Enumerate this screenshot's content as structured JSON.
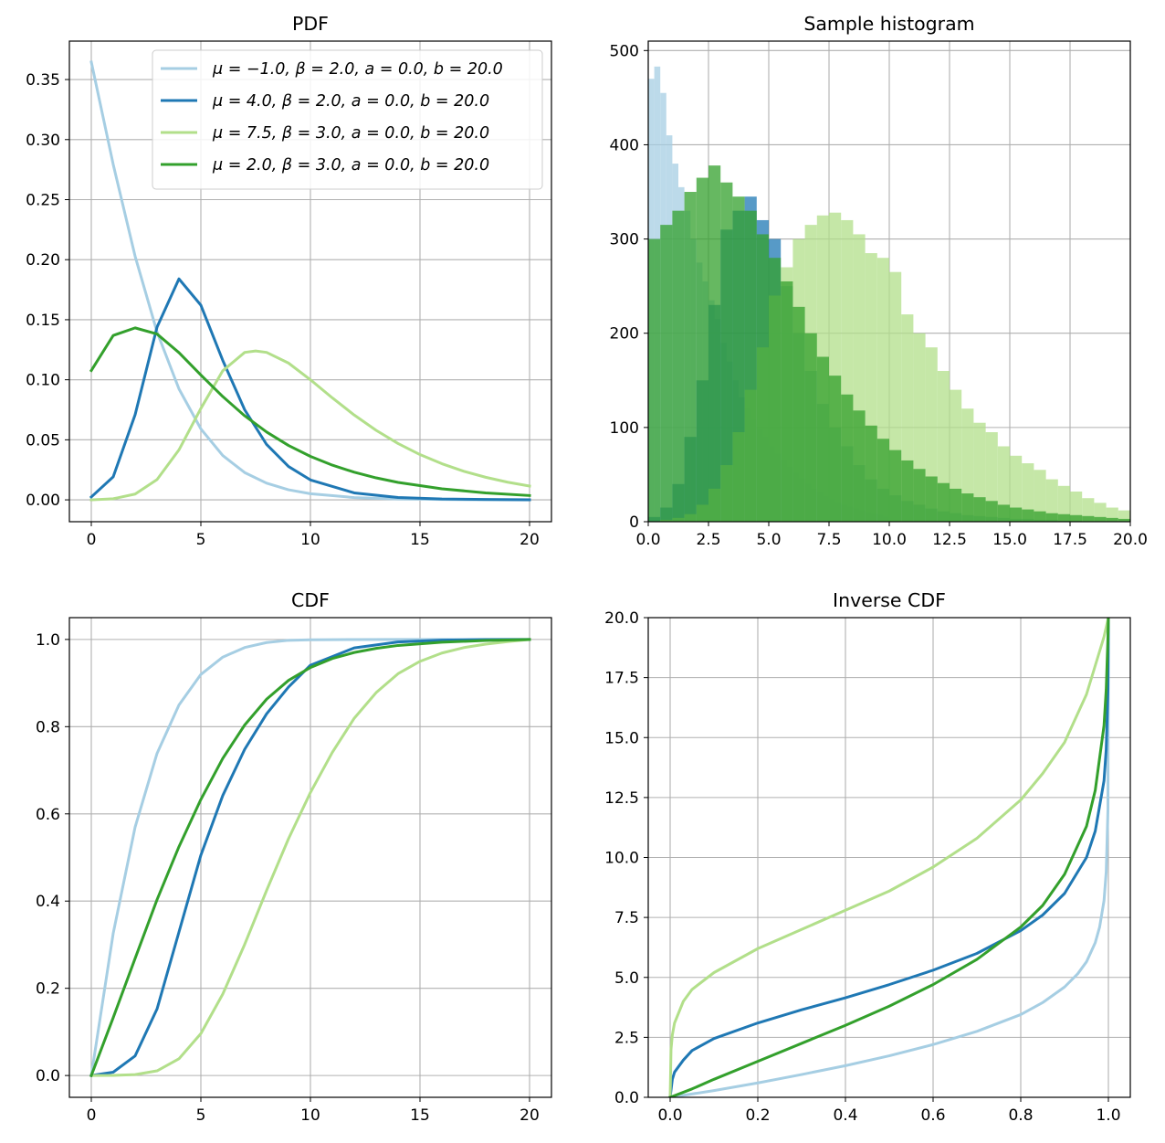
{
  "chart_data": [
    {
      "type": "line",
      "title": "PDF",
      "xlabel": "",
      "ylabel": "",
      "xlim": [
        -1,
        21
      ],
      "ylim": [
        -0.0182,
        0.382
      ],
      "xticks": [
        "0",
        "5",
        "10",
        "15",
        "20"
      ],
      "yticks": [
        "0.00",
        "0.05",
        "0.10",
        "0.15",
        "0.20",
        "0.25",
        "0.30",
        "0.35"
      ],
      "grid": true,
      "legend": "top-right",
      "series": [
        {
          "name": "μ = −1.0, β = 2.0, a = 0.0, b = 20.0",
          "color": "#a6cee3",
          "x": [
            0,
            1,
            2,
            3,
            4,
            5,
            6,
            7,
            8,
            9,
            10,
            12,
            14,
            16,
            18,
            20
          ],
          "y": [
            0.3646,
            0.2793,
            0.2028,
            0.1398,
            0.0924,
            0.0591,
            0.0369,
            0.0227,
            0.0139,
            0.0084,
            0.0051,
            0.0019,
            0.0007,
            0.0003,
            0.0001,
            0.0
          ]
        },
        {
          "name": "μ = 4.0, β = 2.0, a = 0.0, b = 20.0",
          "color": "#1f78b4",
          "x": [
            0,
            1,
            2,
            3,
            4,
            5,
            6,
            7,
            8,
            9,
            10,
            12,
            14,
            16,
            18,
            20
          ],
          "y": [
            0.0024,
            0.0192,
            0.0709,
            0.1439,
            0.184,
            0.1621,
            0.1161,
            0.075,
            0.0461,
            0.0278,
            0.0166,
            0.0058,
            0.002,
            0.0007,
            0.0003,
            0.0001
          ]
        },
        {
          "name": "μ = 7.5, β = 3.0, a = 0.0, b = 20.0",
          "color": "#b2df8a",
          "x": [
            0,
            1,
            2,
            3,
            4,
            5,
            6,
            7,
            7.5,
            8,
            9,
            10,
            11,
            12,
            13,
            14,
            15,
            16,
            17,
            18,
            19,
            20
          ],
          "y": [
            0.0,
            0.0009,
            0.0048,
            0.0169,
            0.0416,
            0.0761,
            0.1075,
            0.1228,
            0.124,
            0.1228,
            0.1139,
            0.1,
            0.0849,
            0.0706,
            0.0579,
            0.0469,
            0.0377,
            0.0301,
            0.0238,
            0.0188,
            0.0147,
            0.0115
          ]
        },
        {
          "name": "μ = 2.0, β = 3.0, a = 0.0, b = 20.0",
          "color": "#33a02c",
          "x": [
            0,
            1,
            2,
            3,
            4,
            5,
            6,
            7,
            8,
            9,
            10,
            11,
            12,
            13,
            14,
            16,
            18,
            20
          ],
          "y": [
            0.1077,
            0.1369,
            0.1432,
            0.1381,
            0.1226,
            0.104,
            0.086,
            0.07,
            0.0565,
            0.0453,
            0.0362,
            0.0289,
            0.023,
            0.0183,
            0.0145,
            0.0092,
            0.0058,
            0.0036
          ]
        }
      ]
    },
    {
      "type": "bar",
      "title": "Sample histogram",
      "xlabel": "",
      "ylabel": "",
      "xlim": [
        0,
        20
      ],
      "ylim": [
        0,
        510
      ],
      "xticks": [
        "0.0",
        "2.5",
        "5.0",
        "7.5",
        "10.0",
        "12.5",
        "15.0",
        "17.5",
        "20.0"
      ],
      "yticks": [
        "0",
        "100",
        "200",
        "300",
        "400",
        "500"
      ],
      "grid": true,
      "series": [
        {
          "color": "#a6cee3",
          "bin_edges": [
            0,
            0.25,
            0.5,
            0.75,
            1.0,
            1.25,
            1.5,
            1.75,
            2.0,
            2.25,
            2.5,
            2.75,
            3.0,
            3.25,
            3.5,
            3.75,
            4.0,
            4.25,
            4.5,
            4.75,
            5.0,
            5.25,
            5.5,
            5.75,
            6.0,
            6.25,
            6.5,
            6.75,
            7.0,
            7.25,
            7.5,
            7.75,
            8.0,
            8.25,
            8.5,
            8.75,
            9.0,
            9.25,
            9.5,
            9.75,
            10.0
          ],
          "counts": [
            470,
            483,
            455,
            410,
            380,
            355,
            330,
            300,
            275,
            255,
            235,
            215,
            190,
            170,
            150,
            132,
            120,
            108,
            98,
            90,
            80,
            72,
            65,
            58,
            52,
            46,
            40,
            35,
            31,
            27,
            24,
            21,
            18,
            16,
            14,
            12,
            10,
            8,
            7,
            5
          ]
        },
        {
          "color": "#1f78b4",
          "bin_edges": [
            0,
            0.5,
            1.0,
            1.5,
            2.0,
            2.5,
            3.0,
            3.5,
            4.0,
            4.5,
            5.0,
            5.5,
            6.0,
            6.5,
            7.0,
            7.5,
            8.0,
            8.5,
            9.0,
            9.5,
            10.0,
            10.5,
            11.0,
            11.5,
            12.0,
            12.5,
            13.0,
            13.5,
            14.0,
            14.5,
            15.0,
            15.5,
            16.0,
            16.5,
            17.0,
            17.5,
            18.0
          ],
          "counts": [
            5,
            15,
            40,
            90,
            150,
            230,
            310,
            330,
            345,
            320,
            300,
            250,
            200,
            160,
            125,
            100,
            80,
            60,
            45,
            35,
            28,
            22,
            18,
            14,
            11,
            9,
            7,
            6,
            5,
            4,
            3,
            3,
            2,
            2,
            1,
            1
          ]
        },
        {
          "color": "#b2df8a",
          "bin_edges": [
            0,
            0.5,
            1.0,
            1.5,
            2.0,
            2.5,
            3.0,
            3.5,
            4.0,
            4.5,
            5.0,
            5.5,
            6.0,
            6.5,
            7.0,
            7.5,
            8.0,
            8.5,
            9.0,
            9.5,
            10.0,
            10.5,
            11.0,
            11.5,
            12.0,
            12.5,
            13.0,
            13.5,
            14.0,
            14.5,
            15.0,
            15.5,
            16.0,
            16.5,
            17.0,
            17.5,
            18.0,
            18.5,
            19.0,
            19.5,
            20.0
          ],
          "counts": [
            0,
            2,
            4,
            8,
            18,
            35,
            60,
            95,
            140,
            185,
            240,
            270,
            300,
            315,
            325,
            328,
            320,
            305,
            285,
            280,
            265,
            220,
            200,
            185,
            160,
            140,
            120,
            105,
            95,
            80,
            70,
            62,
            55,
            45,
            38,
            32,
            25,
            20,
            15,
            12
          ]
        },
        {
          "color": "#33a02c",
          "bin_edges": [
            0,
            0.5,
            1.0,
            1.5,
            2.0,
            2.5,
            3.0,
            3.5,
            4.0,
            4.5,
            5.0,
            5.5,
            6.0,
            6.5,
            7.0,
            7.5,
            8.0,
            8.5,
            9.0,
            9.5,
            10.0,
            10.5,
            11.0,
            11.5,
            12.0,
            12.5,
            13.0,
            13.5,
            14.0,
            14.5,
            15.0,
            15.5,
            16.0,
            16.5,
            17.0,
            17.5,
            18.0,
            18.5,
            19.0,
            19.5,
            20.0
          ],
          "counts": [
            300,
            315,
            330,
            350,
            365,
            378,
            360,
            345,
            330,
            305,
            280,
            255,
            228,
            200,
            175,
            155,
            135,
            118,
            102,
            88,
            76,
            65,
            56,
            48,
            41,
            35,
            30,
            26,
            22,
            18,
            15,
            13,
            11,
            9,
            8,
            7,
            6,
            5,
            4,
            3
          ]
        }
      ]
    },
    {
      "type": "line",
      "title": "CDF",
      "xlabel": "",
      "ylabel": "",
      "xlim": [
        -1,
        21
      ],
      "ylim": [
        -0.05,
        1.05
      ],
      "xticks": [
        "0",
        "5",
        "10",
        "15",
        "20"
      ],
      "yticks": [
        "0.0",
        "0.2",
        "0.4",
        "0.6",
        "0.8",
        "1.0"
      ],
      "grid": true,
      "series": [
        {
          "color": "#a6cee3",
          "x": [
            0,
            1,
            2,
            3,
            4,
            5,
            6,
            7,
            8,
            9,
            10,
            12,
            14,
            16,
            18,
            20
          ],
          "y": [
            0.0,
            0.3261,
            0.5698,
            0.7387,
            0.8497,
            0.9198,
            0.9594,
            0.9815,
            0.9929,
            0.998,
            0.9993,
            0.9998,
            0.9999,
            1.0,
            1.0,
            1.0
          ]
        },
        {
          "color": "#1f78b4",
          "x": [
            0,
            1,
            2,
            3,
            4,
            5,
            6,
            7,
            8,
            9,
            10,
            12,
            14,
            16,
            18,
            20
          ],
          "y": [
            0.0,
            0.0076,
            0.045,
            0.1526,
            0.329,
            0.5053,
            0.6421,
            0.748,
            0.8294,
            0.8909,
            0.9408,
            0.9806,
            0.9942,
            0.9983,
            0.9996,
            1.0
          ]
        },
        {
          "color": "#b2df8a",
          "x": [
            0,
            1,
            2,
            3,
            4,
            5,
            6,
            7,
            8,
            9,
            10,
            11,
            12,
            13,
            14,
            15,
            16,
            17,
            18,
            19,
            20
          ],
          "y": [
            0.0,
            0.0003,
            0.0022,
            0.0107,
            0.0383,
            0.0962,
            0.1867,
            0.3007,
            0.4245,
            0.543,
            0.6489,
            0.7411,
            0.8193,
            0.8781,
            0.9215,
            0.9497,
            0.9688,
            0.9813,
            0.9893,
            0.995,
            1.0
          ]
        },
        {
          "color": "#33a02c",
          "x": [
            0,
            1,
            2,
            3,
            4,
            5,
            6,
            7,
            8,
            9,
            10,
            11,
            12,
            13,
            14,
            16,
            18,
            20
          ],
          "y": [
            0.0,
            0.1327,
            0.2686,
            0.4032,
            0.5247,
            0.633,
            0.7273,
            0.8038,
            0.863,
            0.9061,
            0.9357,
            0.9563,
            0.9701,
            0.9796,
            0.9862,
            0.9938,
            0.9975,
            1.0
          ]
        }
      ]
    },
    {
      "type": "line",
      "title": "Inverse CDF",
      "xlabel": "",
      "ylabel": "",
      "xlim": [
        -0.05,
        1.05
      ],
      "ylim": [
        0,
        20
      ],
      "xticks": [
        "0.0",
        "0.2",
        "0.4",
        "0.6",
        "0.8",
        "1.0"
      ],
      "yticks": [
        "0.0",
        "2.5",
        "5.0",
        "7.5",
        "10.0",
        "12.5",
        "15.0",
        "17.5",
        "20.0"
      ],
      "grid": true,
      "series": [
        {
          "color": "#a6cee3",
          "x": [
            0.0,
            0.1,
            0.2,
            0.3,
            0.4,
            0.5,
            0.6,
            0.7,
            0.8,
            0.85,
            0.9,
            0.93,
            0.95,
            0.97,
            0.98,
            0.99,
            0.995,
            0.999,
            1.0
          ],
          "y": [
            0.0,
            0.28,
            0.6,
            0.95,
            1.32,
            1.73,
            2.2,
            2.75,
            3.45,
            3.95,
            4.6,
            5.15,
            5.65,
            6.45,
            7.1,
            8.2,
            9.4,
            12.0,
            20.0
          ]
        },
        {
          "color": "#1f78b4",
          "x": [
            0.0,
            0.005,
            0.01,
            0.03,
            0.05,
            0.1,
            0.2,
            0.3,
            0.4,
            0.5,
            0.6,
            0.7,
            0.8,
            0.85,
            0.9,
            0.95,
            0.97,
            0.99,
            0.995,
            0.999,
            1.0
          ],
          "y": [
            0.0,
            0.75,
            1.05,
            1.55,
            1.95,
            2.45,
            3.1,
            3.65,
            4.15,
            4.7,
            5.3,
            6.0,
            6.95,
            7.6,
            8.5,
            10.0,
            11.1,
            13.2,
            14.5,
            17.0,
            20.0
          ]
        },
        {
          "color": "#b2df8a",
          "x": [
            0.0,
            0.002,
            0.005,
            0.01,
            0.03,
            0.05,
            0.1,
            0.2,
            0.3,
            0.4,
            0.5,
            0.6,
            0.7,
            0.8,
            0.85,
            0.9,
            0.95,
            0.97,
            0.99,
            1.0
          ],
          "y": [
            0.0,
            2.0,
            2.6,
            3.1,
            4.0,
            4.5,
            5.2,
            6.2,
            7.0,
            7.8,
            8.6,
            9.6,
            10.8,
            12.4,
            13.5,
            14.8,
            16.8,
            18.0,
            19.2,
            20.0
          ]
        },
        {
          "color": "#33a02c",
          "x": [
            0.0,
            0.05,
            0.1,
            0.2,
            0.3,
            0.4,
            0.5,
            0.6,
            0.7,
            0.8,
            0.85,
            0.9,
            0.95,
            0.97,
            0.99,
            0.995,
            0.999,
            1.0
          ],
          "y": [
            0.0,
            0.35,
            0.75,
            1.5,
            2.25,
            3.0,
            3.8,
            4.7,
            5.75,
            7.1,
            8.0,
            9.3,
            11.3,
            12.8,
            15.5,
            17.0,
            19.2,
            20.0
          ]
        }
      ]
    }
  ]
}
